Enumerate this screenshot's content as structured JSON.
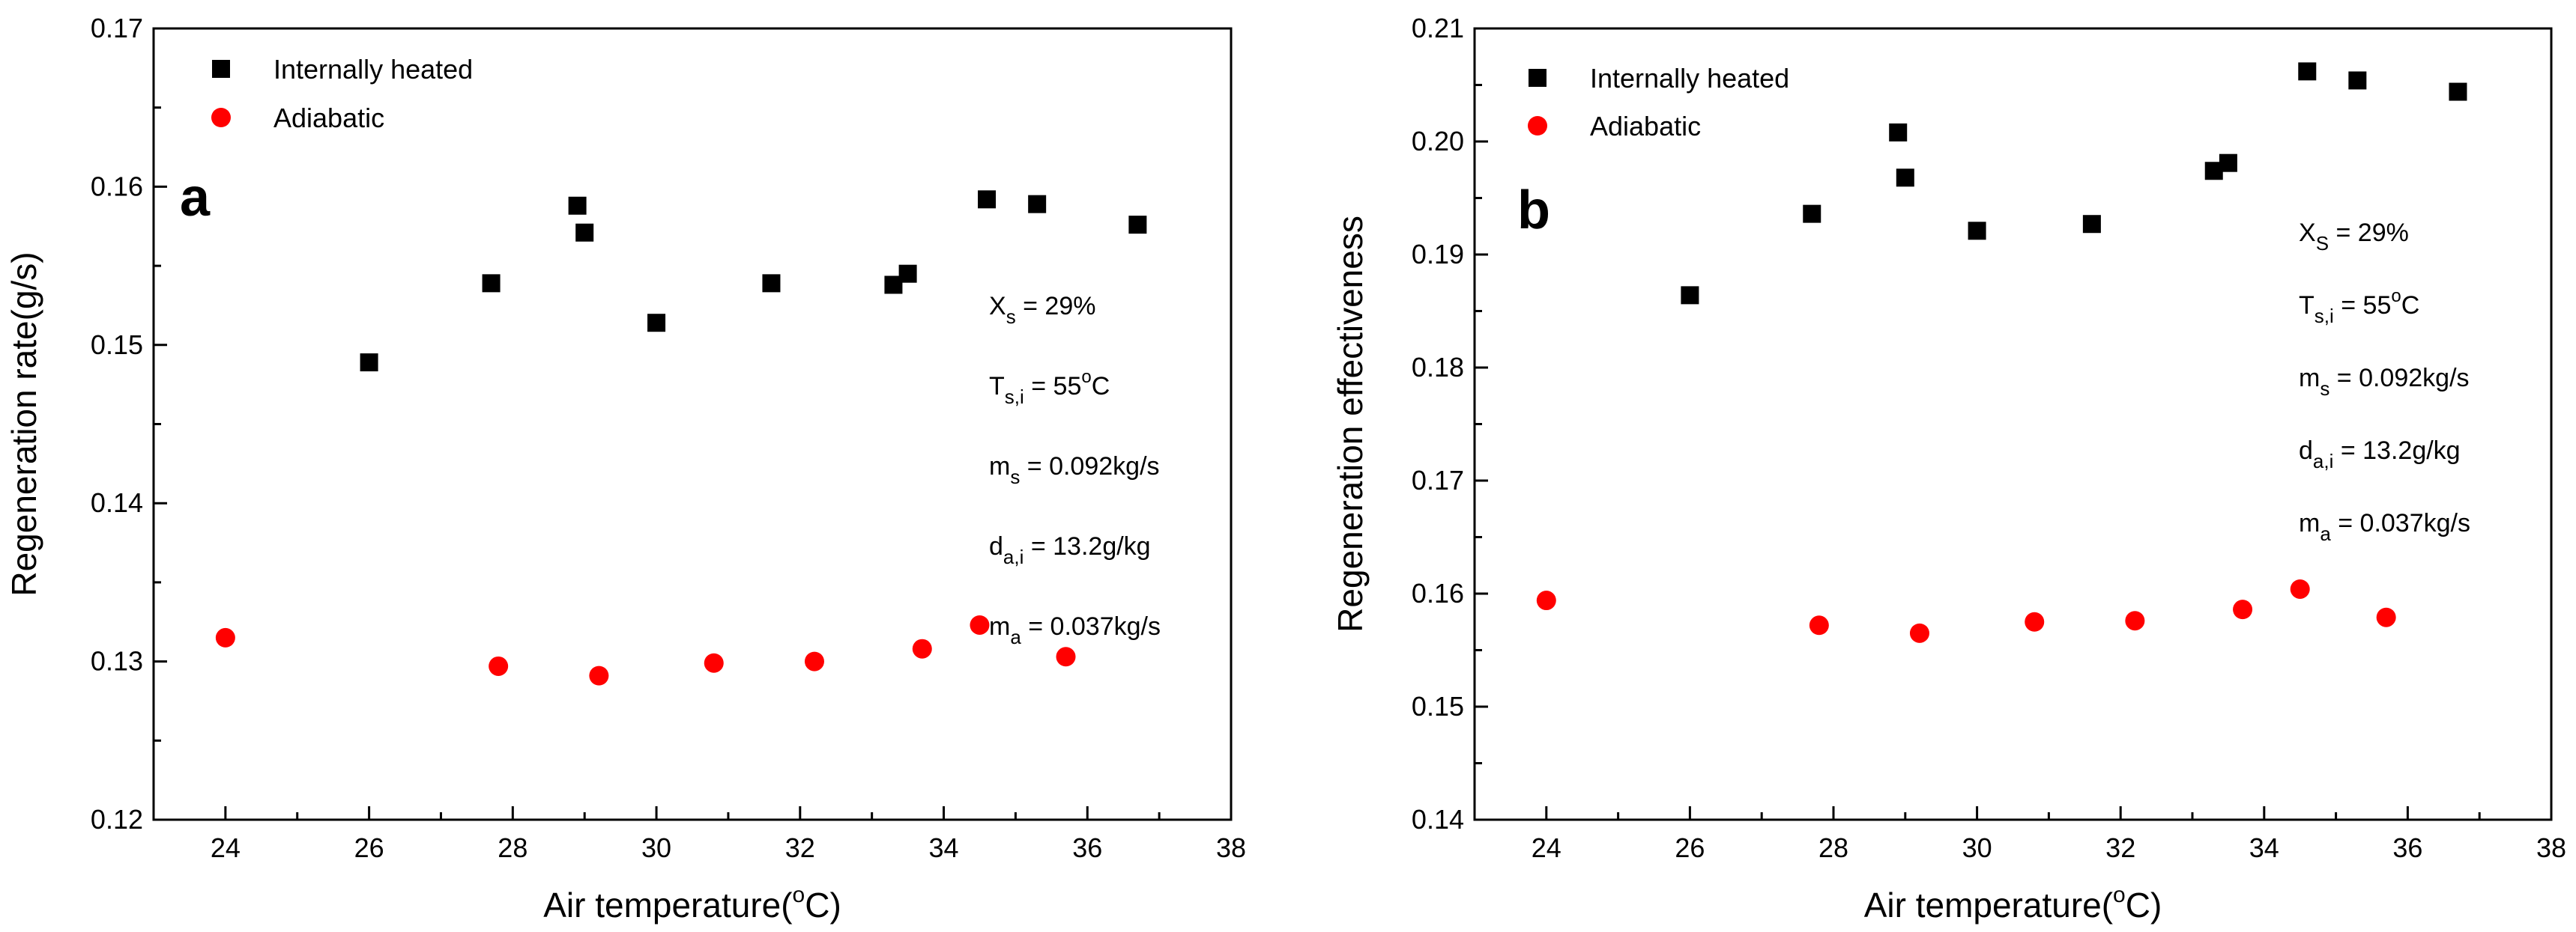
{
  "chart_data": [
    {
      "type": "scatter",
      "panel_label": "a",
      "xlabel_main": "Air temperature(",
      "xlabel_sup": "o",
      "xlabel_end": "C)",
      "ylabel": "Regeneration rate(g/s)",
      "xlim": [
        23,
        38
      ],
      "ylim": [
        0.12,
        0.17
      ],
      "xticks": [
        "24",
        "26",
        "28",
        "30",
        "32",
        "34",
        "36",
        "38"
      ],
      "yticks": [
        "0.12",
        "0.13",
        "0.14",
        "0.15",
        "0.16",
        "0.17"
      ],
      "legend_position": "top-left",
      "series": [
        {
          "name": "Internally heated",
          "marker": "square",
          "color": "#000000",
          "points": [
            [
              26.0,
              0.1489
            ],
            [
              27.7,
              0.1539
            ],
            [
              28.9,
              0.1588
            ],
            [
              29.0,
              0.1571
            ],
            [
              30.0,
              0.1514
            ],
            [
              31.6,
              0.1539
            ],
            [
              33.3,
              0.1538
            ],
            [
              33.5,
              0.1545
            ],
            [
              34.6,
              0.1592
            ],
            [
              35.3,
              0.1589
            ],
            [
              36.7,
              0.1576
            ]
          ]
        },
        {
          "name": "Adiabatic",
          "marker": "circle",
          "color": "#ff0000",
          "points": [
            [
              24.0,
              0.1315
            ],
            [
              27.8,
              0.1297
            ],
            [
              29.2,
              0.1291
            ],
            [
              30.8,
              0.1299
            ],
            [
              32.2,
              0.13
            ],
            [
              33.7,
              0.1308
            ],
            [
              34.5,
              0.1323
            ],
            [
              35.7,
              0.1303
            ]
          ]
        }
      ],
      "params": [
        {
          "main": "X",
          "sub": "s",
          "sup": "",
          "rest": " = 29%",
          "after": ""
        },
        {
          "main": "T",
          "sub": "s,i",
          "sup": "",
          "rest": " = 55",
          "sup2": "o",
          "after": "C"
        },
        {
          "main": "m",
          "sub": "s",
          "sup": "",
          "rest": "  = 0.092kg/s",
          "after": ""
        },
        {
          "main": "d",
          "sub": "a,i",
          "sup": "",
          "rest": " = 13.2g/kg",
          "after": ""
        },
        {
          "main": "m",
          "sub": "a",
          "sup": "",
          "rest": "  = 0.037kg/s",
          "after": ""
        }
      ]
    },
    {
      "type": "scatter",
      "panel_label": "b",
      "xlabel_main": "Air temperature(",
      "xlabel_sup": "o",
      "xlabel_end": "C)",
      "ylabel": "Regeneration effectiveness",
      "xlim": [
        23,
        38
      ],
      "ylim": [
        0.14,
        0.21
      ],
      "xticks": [
        "24",
        "26",
        "28",
        "30",
        "32",
        "34",
        "36",
        "38"
      ],
      "yticks": [
        "0.14",
        "0.15",
        "0.16",
        "0.17",
        "0.18",
        "0.19",
        "0.20",
        "0.21"
      ],
      "legend_position": "top-left",
      "series": [
        {
          "name": "Internally heated",
          "marker": "square",
          "color": "#000000",
          "points": [
            [
              26.0,
              0.1864
            ],
            [
              27.7,
              0.1936
            ],
            [
              28.9,
              0.2008
            ],
            [
              29.0,
              0.1968
            ],
            [
              30.0,
              0.1921
            ],
            [
              31.6,
              0.1927
            ],
            [
              33.3,
              0.1974
            ],
            [
              33.5,
              0.1981
            ],
            [
              34.6,
              0.2062
            ],
            [
              35.3,
              0.2054
            ],
            [
              36.7,
              0.2044
            ]
          ]
        },
        {
          "name": "Adiabatic",
          "marker": "circle",
          "color": "#ff0000",
          "points": [
            [
              24.0,
              0.1594
            ],
            [
              27.8,
              0.1572
            ],
            [
              29.2,
              0.1565
            ],
            [
              30.8,
              0.1575
            ],
            [
              32.2,
              0.1576
            ],
            [
              33.7,
              0.1586
            ],
            [
              34.5,
              0.1604
            ],
            [
              35.7,
              0.1579
            ]
          ]
        }
      ],
      "params": [
        {
          "main": "X",
          "sub": "S",
          "sup": "",
          "rest": " = 29%",
          "after": ""
        },
        {
          "main": "T",
          "sub": "s,i",
          "sup": "",
          "rest": " = 55",
          "sup2": "o",
          "after": "C"
        },
        {
          "main": "m",
          "sub": "s",
          "sup": "",
          "rest": "  = 0.092kg/s",
          "after": ""
        },
        {
          "main": "d",
          "sub": "a,i",
          "sup": "",
          "rest": " = 13.2g/kg",
          "after": ""
        },
        {
          "main": "m",
          "sub": "a",
          "sup": "",
          "rest": "  = 0.037kg/s",
          "after": ""
        }
      ]
    }
  ]
}
